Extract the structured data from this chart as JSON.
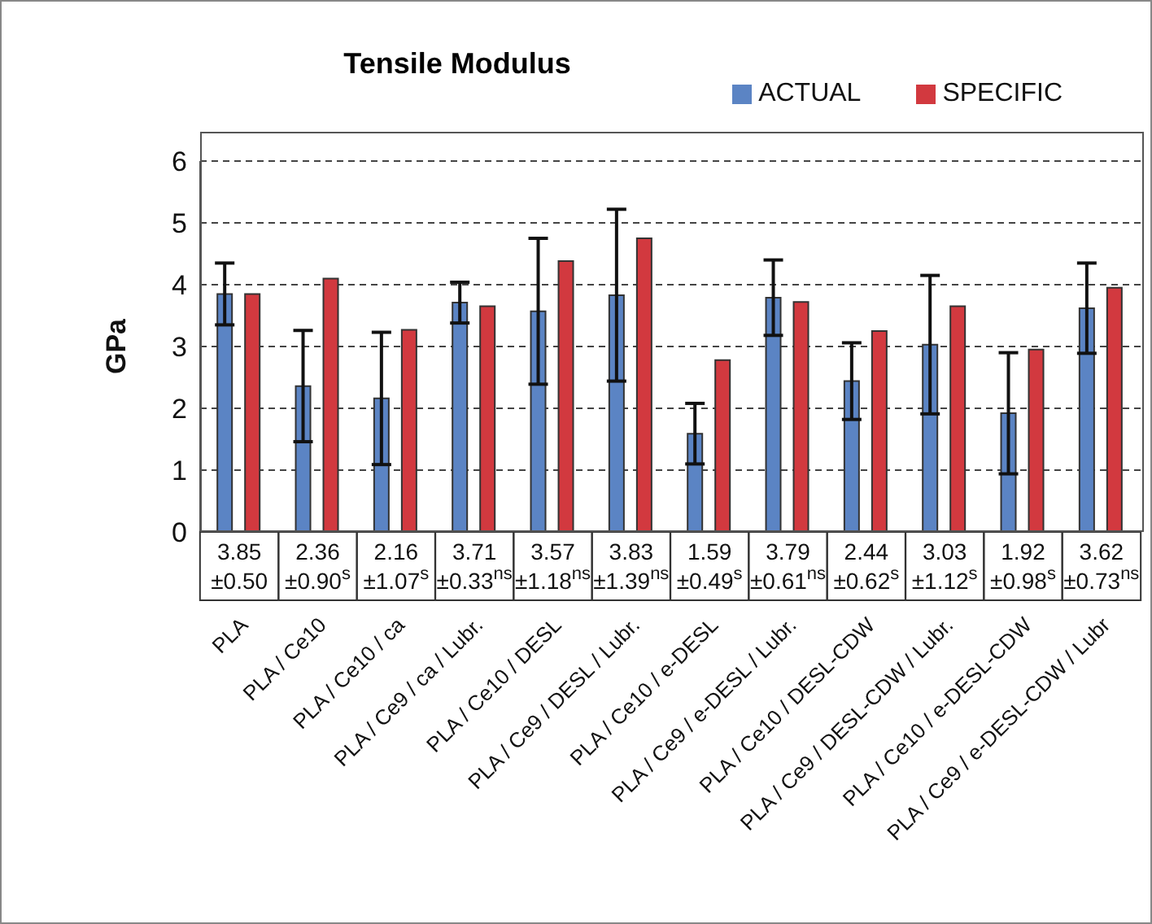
{
  "chart_data": {
    "type": "bar",
    "title": "Tensile Modulus",
    "ylabel": "GPa",
    "categories": [
      "PLA",
      "PLA / Ce10",
      "PLA / Ce10 / ca",
      "PLA / Ce9 / ca / Lubr.",
      "PLA / Ce10 / DESL",
      "PLA / Ce9 / DESL / Lubr.",
      "PLA / Ce10 / e-DESL",
      "PLA / Ce9 / e-DESL / Lubr.",
      "PLA / Ce10 / DESL-CDW",
      "PLA / Ce9 / DESL-CDW / Lubr.",
      "PLA / Ce10 / e-DESL-CDW",
      "PLA / Ce9 / e-DESL-CDW / Lubr"
    ],
    "series": [
      {
        "name": "ACTUAL",
        "color": "#5b84c4",
        "values": [
          3.85,
          2.36,
          2.16,
          3.71,
          3.57,
          3.83,
          1.59,
          3.79,
          2.44,
          3.03,
          1.92,
          3.62
        ],
        "errors": [
          0.5,
          0.9,
          1.07,
          0.33,
          1.18,
          1.39,
          0.49,
          0.61,
          0.62,
          1.12,
          0.98,
          0.73
        ],
        "value_labels": [
          "3.85 ±0.50",
          "2.36 ±0.90$^{s}$",
          "2.16 ±1.07$^{s}$",
          "3.71 ±0.33$^{ns}$",
          "3.57 ±1.18$^{ns}$",
          "3.83 ±1.39$^{ns}$",
          "1.59 ±0.49$^{s}$",
          "3.79 ±0.61$^{ns}$",
          "2.44 ±0.62$^{s}$",
          "3.03 ±1.12$^{s}$",
          "1.92 ±0.98$^{s}$",
          "3.62 ±0.73$^{ns}$"
        ]
      },
      {
        "name": "SPECIFIC",
        "color": "#d2393f",
        "values": [
          3.85,
          4.1,
          3.27,
          3.65,
          4.38,
          4.75,
          2.78,
          3.72,
          3.25,
          3.65,
          2.95,
          3.95
        ]
      }
    ],
    "ylim": [
      0,
      6
    ],
    "yticks": [
      0,
      1,
      2,
      3,
      4,
      5,
      6
    ],
    "grid": "y",
    "legend": "top right"
  }
}
